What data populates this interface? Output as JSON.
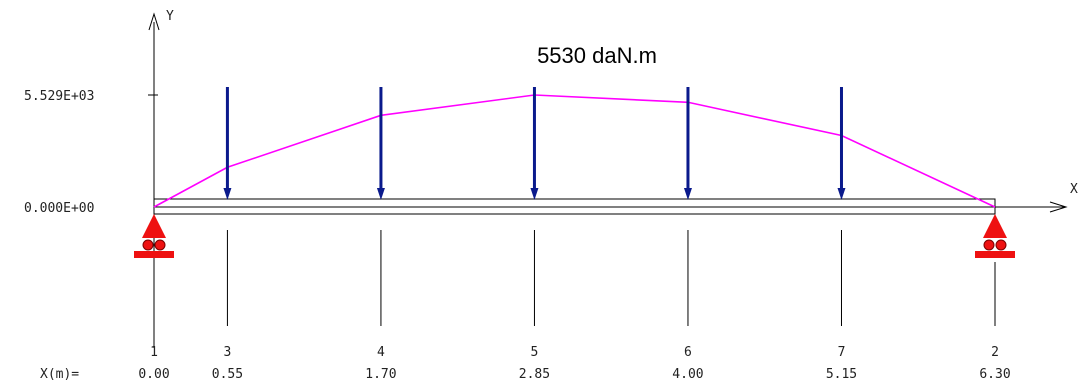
{
  "title": "5530 daN.m",
  "axis": {
    "y_label": "Y",
    "x_label": "X"
  },
  "y_ticks": [
    {
      "label": "5.529E+03",
      "value": 5529
    },
    {
      "label": "0.000E+00",
      "value": 0
    }
  ],
  "x_row_label": "X(m)=",
  "nodes": [
    {
      "id": "1",
      "x": "0.00",
      "xm": 0.0
    },
    {
      "id": "3",
      "x": "0.55",
      "xm": 0.55
    },
    {
      "id": "4",
      "x": "1.70",
      "xm": 1.7
    },
    {
      "id": "5",
      "x": "2.85",
      "xm": 2.85
    },
    {
      "id": "6",
      "x": "4.00",
      "xm": 4.0
    },
    {
      "id": "7",
      "x": "5.15",
      "xm": 5.15
    },
    {
      "id": "2",
      "x": "6.30",
      "xm": 6.3
    }
  ],
  "moment_curve": [
    {
      "x": 0.0,
      "m": 0
    },
    {
      "x": 0.55,
      "m": 1960
    },
    {
      "x": 1.7,
      "m": 4525
    },
    {
      "x": 2.85,
      "m": 5529
    },
    {
      "x": 4.0,
      "m": 5170
    },
    {
      "x": 5.15,
      "m": 3530
    },
    {
      "x": 6.3,
      "m": 0
    }
  ],
  "point_loads_at": [
    0.55,
    1.7,
    2.85,
    4.0,
    5.15
  ],
  "supports_at": [
    0.0,
    6.3
  ],
  "colors": {
    "moment": "#ff00ff",
    "load": "#0a1a8c",
    "support": "#ee1111",
    "beam": "#000000"
  }
}
